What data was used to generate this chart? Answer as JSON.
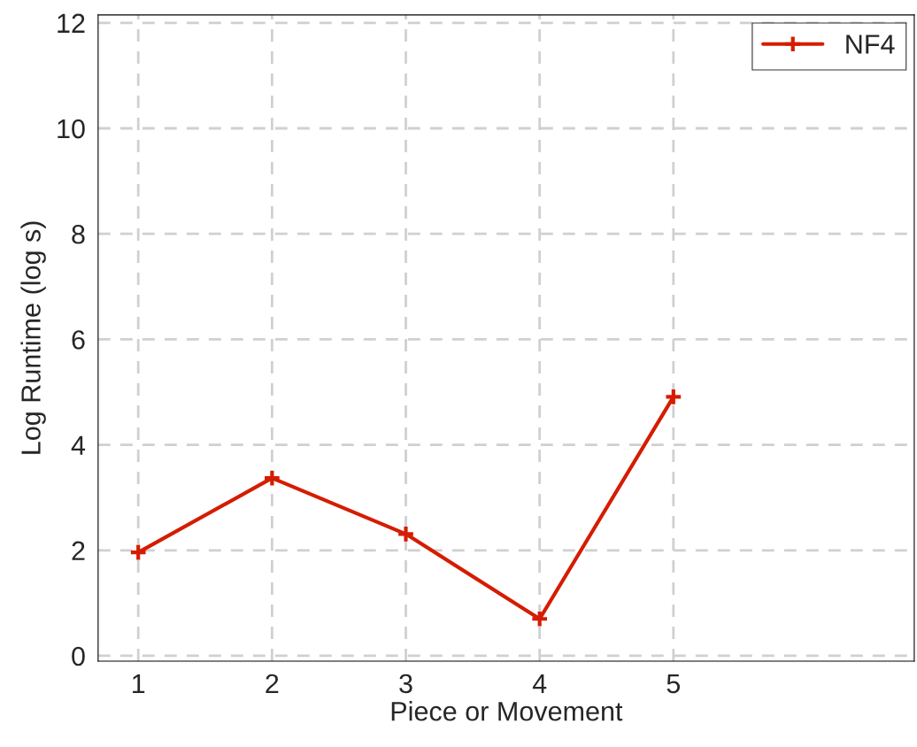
{
  "chart_data": {
    "type": "line",
    "xlabel": "Piece or Movement",
    "ylabel": "Log Runtime (log s)",
    "x": [
      1,
      2,
      3,
      4,
      5
    ],
    "series": [
      {
        "name": "NF4",
        "color": "#d51c00",
        "values": [
          1.96,
          3.37,
          2.31,
          0.7,
          4.91
        ]
      }
    ],
    "xlim": [
      0.7,
      6.8
    ],
    "xticks": [
      1,
      2,
      3,
      4,
      5
    ],
    "ylim": [
      -0.1,
      12.15
    ],
    "yticks": [
      0,
      2,
      4,
      6,
      8,
      10,
      12
    ],
    "grid": true,
    "legend": "top right",
    "marker": "cross",
    "line_style": "solid"
  }
}
